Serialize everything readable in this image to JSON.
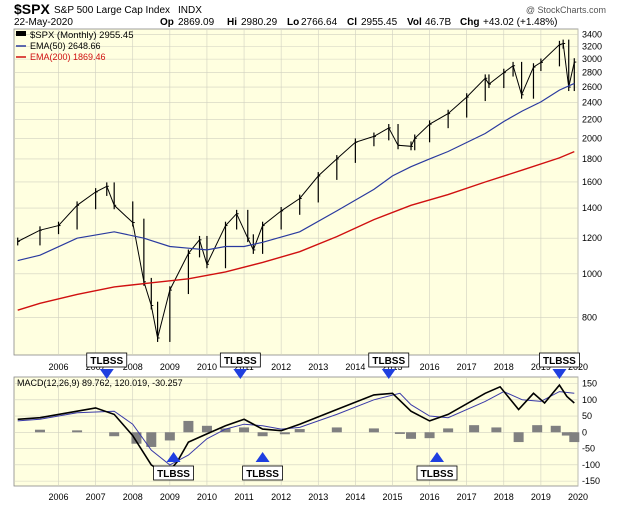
{
  "header": {
    "symbol": "$SPX",
    "name": "S&P 500 Large Cap Index",
    "exchange": "INDX",
    "source": "@ StockCharts.com",
    "date": "22-May-2020",
    "open_label": "Op",
    "open": "2869.09",
    "high_label": "Hi",
    "high": "2980.29",
    "low_label": "Lo",
    "low": "2766.64",
    "close_label": "Cl",
    "close": "2955.45",
    "vol_label": "Vol",
    "vol": "46.7B",
    "chg_label": "Chg",
    "chg": "+43.02 (+1.48%)"
  },
  "legend": {
    "price": "$SPX (Monthly) 2955.45",
    "ema50": "EMA(50) 2648.66",
    "ema200": "EMA(200) 1869.46"
  },
  "macd_label": "MACD(12,26,9) 89.762, 120.019, -30.257",
  "colors": {
    "background": "#ffffe0",
    "price": "#000000",
    "ema50": "#2a3a9f",
    "ema200": "#d01010",
    "macd": "#000000",
    "signal": "#3a3aa8",
    "histogram": "#808080",
    "arrow": "#1f3fe0",
    "grid": "#d0d0c0"
  },
  "annotations": [
    {
      "text": "TLBSS",
      "x": 2007.8,
      "dir": "down"
    },
    {
      "text": "TLBSS",
      "x": 2009.6,
      "dir": "up"
    },
    {
      "text": "TLBSS",
      "x": 2011.4,
      "dir": "down"
    },
    {
      "text": "TLBSS",
      "x": 2012.0,
      "dir": "up"
    },
    {
      "text": "TLBSS",
      "x": 2015.4,
      "dir": "down"
    },
    {
      "text": "TLBSS",
      "x": 2016.7,
      "dir": "up"
    },
    {
      "text": "TLBSS",
      "x": 2020.0,
      "dir": "down"
    }
  ],
  "chart_data": [
    {
      "type": "line",
      "title": "$SPX S&P 500 Large Cap Index",
      "scale": "log",
      "xlim": [
        2005.3,
        2020.5
      ],
      "ylim": [
        660,
        3500
      ],
      "x_ticks": [
        "2006",
        "2007",
        "2008",
        "2009",
        "2010",
        "2011",
        "2012",
        "2013",
        "2014",
        "2015",
        "2016",
        "2017",
        "2018",
        "2019",
        "2020"
      ],
      "y_ticks": [
        800,
        1000,
        1200,
        1400,
        1600,
        1800,
        2000,
        2200,
        2400,
        2600,
        2800,
        3000,
        3200,
        3400
      ],
      "grid": true,
      "legend_position": "top-left",
      "series": [
        {
          "name": "$SPX (Monthly)",
          "style": "bars",
          "x": [
            2005.4,
            2006.0,
            2006.5,
            2007.0,
            2007.5,
            2007.8,
            2008.0,
            2008.5,
            2008.8,
            2009.0,
            2009.17,
            2009.5,
            2010.0,
            2010.3,
            2010.5,
            2011.0,
            2011.3,
            2011.6,
            2011.75,
            2012.0,
            2012.5,
            2013.0,
            2013.5,
            2014.0,
            2014.5,
            2015.0,
            2015.4,
            2015.65,
            2016.0,
            2016.1,
            2016.5,
            2017.0,
            2017.5,
            2018.0,
            2018.1,
            2018.5,
            2018.75,
            2018.98,
            2019.3,
            2019.5,
            2020.0,
            2020.1,
            2020.25,
            2020.4
          ],
          "values": [
            1180,
            1250,
            1280,
            1420,
            1520,
            1565,
            1420,
            1300,
            960,
            850,
            720,
            920,
            1110,
            1190,
            1050,
            1280,
            1360,
            1200,
            1130,
            1280,
            1380,
            1470,
            1650,
            1800,
            1960,
            2020,
            2110,
            1930,
            1920,
            2000,
            2150,
            2270,
            2470,
            2720,
            2640,
            2800,
            2900,
            2500,
            2880,
            2950,
            3230,
            3250,
            2600,
            2955
          ]
        },
        {
          "name": "EMA(50)",
          "x": [
            2005.4,
            2006.0,
            2007.0,
            2008.0,
            2008.8,
            2009.5,
            2010.0,
            2010.5,
            2011.0,
            2011.5,
            2012.0,
            2013.0,
            2014.0,
            2015.0,
            2015.5,
            2016.0,
            2016.5,
            2017.0,
            2018.0,
            2018.5,
            2019.0,
            2019.5,
            2020.0,
            2020.4
          ],
          "values": [
            1070,
            1100,
            1200,
            1240,
            1200,
            1150,
            1140,
            1130,
            1150,
            1150,
            1175,
            1240,
            1380,
            1540,
            1650,
            1730,
            1800,
            1870,
            2050,
            2180,
            2300,
            2410,
            2560,
            2649
          ]
        },
        {
          "name": "EMA(200)",
          "x": [
            2005.4,
            2006.0,
            2007.0,
            2008.0,
            2009.0,
            2010.0,
            2011.0,
            2012.0,
            2013.0,
            2014.0,
            2015.0,
            2016.0,
            2017.0,
            2018.0,
            2019.0,
            2020.0,
            2020.4
          ],
          "values": [
            830,
            860,
            900,
            935,
            955,
            975,
            1010,
            1060,
            1120,
            1210,
            1320,
            1420,
            1500,
            1600,
            1700,
            1810,
            1869
          ]
        }
      ]
    },
    {
      "type": "line",
      "title": "MACD(12,26,9) 89.762, 120.019, -30.257",
      "xlim": [
        2005.3,
        2020.5
      ],
      "ylim": [
        -165,
        170
      ],
      "y_ticks": [
        -150,
        -100,
        -50,
        0,
        50,
        100,
        150
      ],
      "series": [
        {
          "name": "MACD",
          "x": [
            2005.4,
            2006.0,
            2006.5,
            2007.0,
            2007.5,
            2008.0,
            2008.5,
            2009.0,
            2009.4,
            2009.7,
            2010.0,
            2010.5,
            2011.0,
            2011.5,
            2012.0,
            2012.5,
            2013.0,
            2014.0,
            2015.0,
            2015.5,
            2016.0,
            2016.5,
            2017.0,
            2018.0,
            2018.4,
            2018.9,
            2019.3,
            2019.6,
            2020.0,
            2020.2,
            2020.4
          ],
          "values": [
            40,
            45,
            55,
            65,
            75,
            55,
            -10,
            -100,
            -130,
            -90,
            -30,
            -5,
            20,
            40,
            10,
            5,
            25,
            70,
            115,
            120,
            65,
            35,
            55,
            120,
            140,
            70,
            120,
            90,
            145,
            110,
            90
          ]
        },
        {
          "name": "Signal",
          "x": [
            2005.4,
            2006.0,
            2007.0,
            2008.0,
            2008.5,
            2009.0,
            2009.5,
            2010.0,
            2010.5,
            2011.0,
            2011.5,
            2012.0,
            2012.5,
            2013.0,
            2014.0,
            2015.0,
            2015.7,
            2016.0,
            2016.5,
            2017.0,
            2018.0,
            2018.5,
            2019.0,
            2019.5,
            2020.0,
            2020.4
          ],
          "values": [
            35,
            40,
            60,
            65,
            25,
            -55,
            -100,
            -70,
            -20,
            10,
            25,
            20,
            10,
            15,
            55,
            100,
            120,
            85,
            50,
            45,
            95,
            125,
            100,
            95,
            125,
            120
          ]
        },
        {
          "name": "Histogram",
          "style": "bars",
          "x": [
            2006.0,
            2007.0,
            2008.0,
            2008.6,
            2009.0,
            2009.5,
            2010.0,
            2010.5,
            2011.0,
            2011.5,
            2012.0,
            2012.6,
            2013.0,
            2014.0,
            2015.0,
            2015.7,
            2016.0,
            2016.5,
            2017.0,
            2017.7,
            2018.3,
            2018.9,
            2019.4,
            2019.9,
            2020.2,
            2020.4
          ],
          "values": [
            8,
            6,
            -12,
            -35,
            -45,
            -25,
            35,
            20,
            12,
            15,
            -12,
            -6,
            10,
            15,
            12,
            -5,
            -20,
            -18,
            12,
            22,
            15,
            -30,
            22,
            20,
            -10,
            -30
          ]
        }
      ]
    }
  ]
}
